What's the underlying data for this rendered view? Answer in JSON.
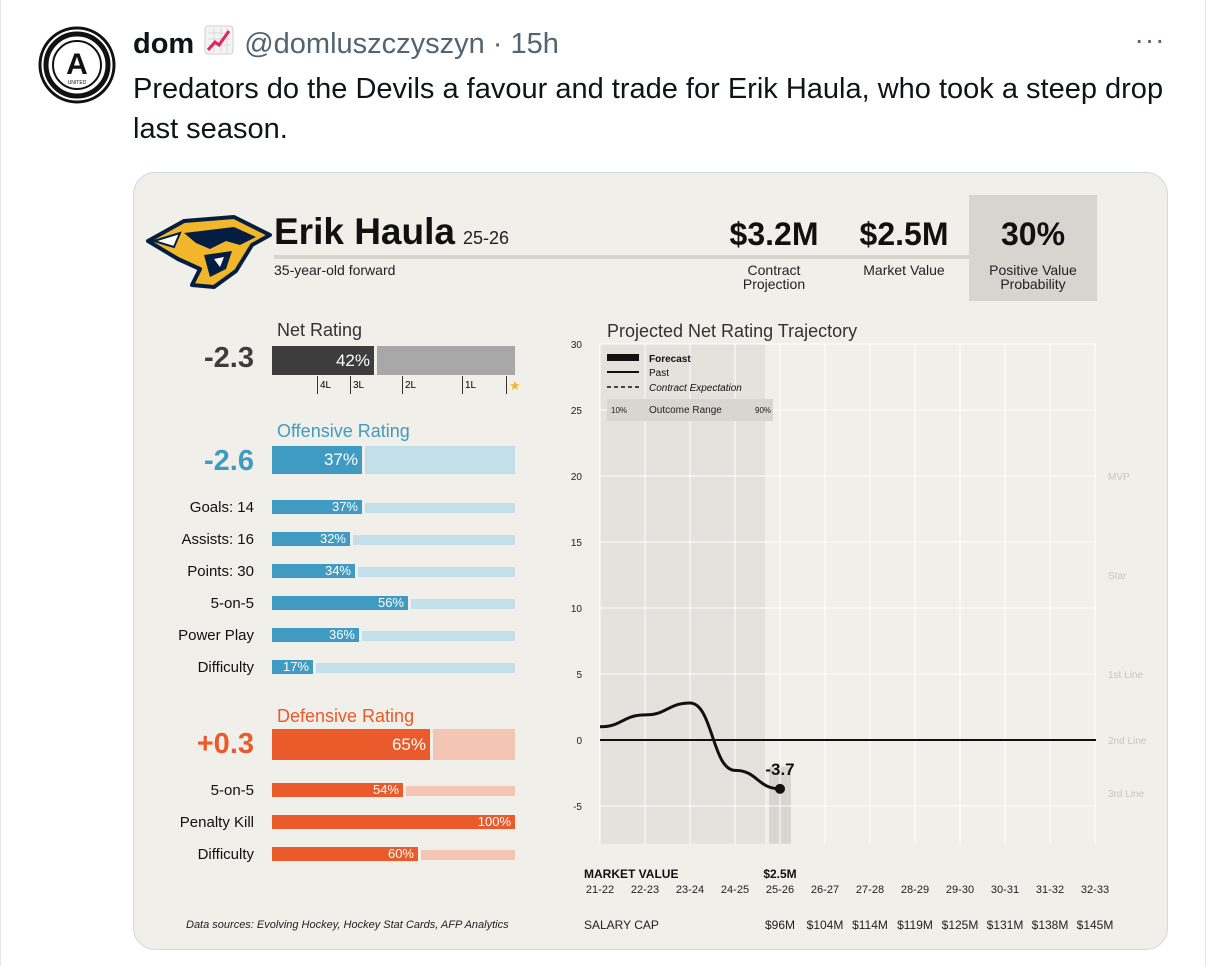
{
  "tweet": {
    "author_name": "dom",
    "author_emoji": "📈",
    "handle": "@domluszczyszyn",
    "separator": "·",
    "time": "15h",
    "more_label": "···",
    "text": "Predators do the Devils a favour and trade for Erik Haula, who took a steep drop last season.",
    "avatar_letter": "A",
    "avatar_sub": "UNITED"
  },
  "card": {
    "player_name": "Erik Haula",
    "season": "25-26",
    "descriptor": "35-year-old forward",
    "contract_projection": {
      "value": "$3.2M",
      "label_line1": "Contract",
      "label_line2": "Projection"
    },
    "market_value": {
      "value": "$2.5M",
      "label": "Market Value"
    },
    "positive_value_probability": {
      "value": "30%",
      "label_line1": "Positive Value",
      "label_line2": "Probability"
    },
    "net_rating": {
      "title": "Net Rating",
      "value": "-2.3",
      "percentile": 42,
      "percentile_label": "42%",
      "markers": [
        "4L",
        "3L",
        "2L",
        "1L",
        "★"
      ],
      "colors": {
        "fill": "#3d3d3d",
        "track": "#a8a8a8"
      }
    },
    "offensive": {
      "title": "Offensive Rating",
      "value": "-2.6",
      "percentile": 37,
      "percentile_label": "37%",
      "colors": {
        "fill": "#3f9bc2",
        "track": "#c2dfea",
        "text": "#3f9bc2"
      },
      "rows": [
        {
          "label": "Goals: 14",
          "pct": 37,
          "pct_label": "37%"
        },
        {
          "label": "Assists: 16",
          "pct": 32,
          "pct_label": "32%"
        },
        {
          "label": "Points: 30",
          "pct": 34,
          "pct_label": "34%"
        },
        {
          "label": "5-on-5",
          "pct": 56,
          "pct_label": "56%"
        },
        {
          "label": "Power Play",
          "pct": 36,
          "pct_label": "36%"
        },
        {
          "label": "Difficulty",
          "pct": 17,
          "pct_label": "17%"
        }
      ]
    },
    "defensive": {
      "title": "Defensive Rating",
      "value": "+0.3",
      "percentile": 65,
      "percentile_label": "65%",
      "colors": {
        "fill": "#ea5a2b",
        "track": "#f5c5b4",
        "text": "#ea5a2b"
      },
      "rows": [
        {
          "label": "5-on-5",
          "pct": 54,
          "pct_label": "54%"
        },
        {
          "label": "Penalty Kill",
          "pct": 100,
          "pct_label": "100%"
        },
        {
          "label": "Difficulty",
          "pct": 60,
          "pct_label": "60%"
        }
      ]
    },
    "sources": "Data sources: Evolving Hockey, Hockey Stat Cards, AFP Analytics"
  },
  "chart_data": {
    "type": "line",
    "title": "Projected Net Rating Trajectory",
    "ylim": [
      -8,
      30
    ],
    "yticks": [
      30,
      25,
      20,
      15,
      10,
      5,
      0,
      -5
    ],
    "categories": [
      "21-22",
      "22-23",
      "23-24",
      "24-25",
      "25-26",
      "26-27",
      "27-28",
      "28-29",
      "29-30",
      "30-31",
      "31-32",
      "32-33"
    ],
    "series": [
      {
        "name": "Past",
        "x": [
          "21-22",
          "22-23",
          "23-24",
          "24-25",
          "25-26"
        ],
        "y": [
          1.0,
          1.9,
          2.8,
          -2.3,
          -3.7
        ]
      }
    ],
    "current_value": "-3.7",
    "tier_labels": [
      {
        "label": "MVP",
        "y": 20
      },
      {
        "label": "Star",
        "y": 12.5
      },
      {
        "label": "1st Line",
        "y": 5
      },
      {
        "label": "2nd Line",
        "y": 0
      },
      {
        "label": "3rd Line",
        "y": -4
      }
    ],
    "legend": {
      "forecast": "Forecast",
      "past": "Past",
      "contract": "Contract Expectation",
      "range_lo": "10%",
      "range_label": "Outcome Range",
      "range_hi": "90%",
      "placement": "top-left"
    },
    "market_value_label": "MARKET VALUE",
    "market_value_amount": "$2.5M",
    "market_value_season": "25-26",
    "salary_cap_label": "SALARY CAP",
    "salary_caps": [
      {
        "season": "25-26",
        "value": "$96M"
      },
      {
        "season": "26-27",
        "value": "$104M"
      },
      {
        "season": "27-28",
        "value": "$114M"
      },
      {
        "season": "28-29",
        "value": "$119M"
      },
      {
        "season": "29-30",
        "value": "$125M"
      },
      {
        "season": "30-31",
        "value": "$131M"
      },
      {
        "season": "31-32",
        "value": "$138M"
      },
      {
        "season": "32-33",
        "value": "$145M"
      }
    ]
  }
}
